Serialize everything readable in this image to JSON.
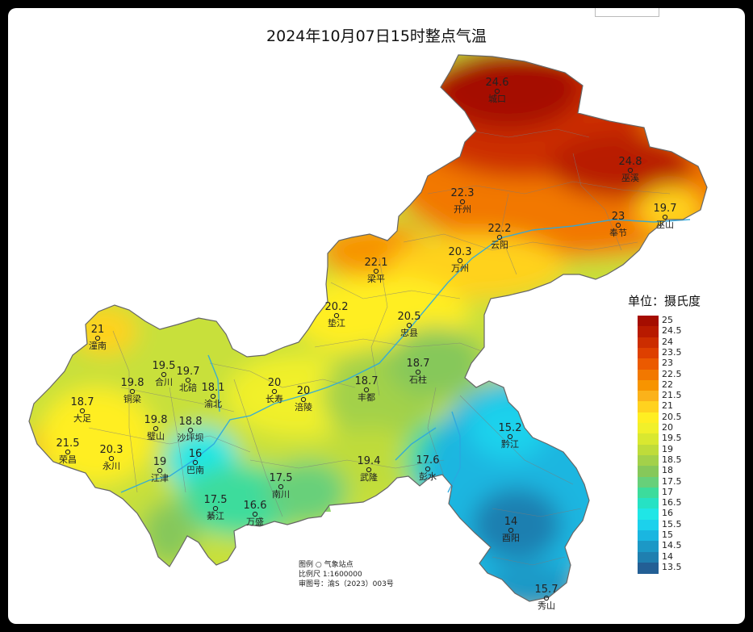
{
  "title": "2024年10月07日15时整点气温",
  "legend": {
    "title": "单位：摄氏度",
    "steps": [
      {
        "label": "25",
        "color": "#a50d00"
      },
      {
        "label": "24.5",
        "color": "#b81a00"
      },
      {
        "label": "24",
        "color": "#cc2d00"
      },
      {
        "label": "23.5",
        "color": "#de4000"
      },
      {
        "label": "23",
        "color": "#eb5a00"
      },
      {
        "label": "22.5",
        "color": "#f27800"
      },
      {
        "label": "22",
        "color": "#f79400"
      },
      {
        "label": "21.5",
        "color": "#fbb21a"
      },
      {
        "label": "21",
        "color": "#ffd21f"
      },
      {
        "label": "20.5",
        "color": "#ffee22"
      },
      {
        "label": "20",
        "color": "#f1f02a"
      },
      {
        "label": "19.5",
        "color": "#d9e830"
      },
      {
        "label": "19",
        "color": "#bfdc3a"
      },
      {
        "label": "18.5",
        "color": "#a3d14a"
      },
      {
        "label": "18",
        "color": "#86c85a"
      },
      {
        "label": "17.5",
        "color": "#67d07a"
      },
      {
        "label": "17",
        "color": "#3cdc9c"
      },
      {
        "label": "16.5",
        "color": "#26e2c4"
      },
      {
        "label": "16",
        "color": "#1fe6e6"
      },
      {
        "label": "15.5",
        "color": "#1cd1ec"
      },
      {
        "label": "15",
        "color": "#1ab6e0"
      },
      {
        "label": "14.5",
        "color": "#1c98c6"
      },
      {
        "label": "14",
        "color": "#1f7fb0"
      },
      {
        "label": "13.5",
        "color": "#235f95"
      }
    ]
  },
  "stations": [
    {
      "name": "城口",
      "value": "24.6"
    },
    {
      "name": "巫溪",
      "value": "24.8"
    },
    {
      "name": "开州",
      "value": "22.3"
    },
    {
      "name": "云阳",
      "value": "22.2"
    },
    {
      "name": "奉节",
      "value": "23"
    },
    {
      "name": "巫山",
      "value": "19.7"
    },
    {
      "name": "梁平",
      "value": "22.1"
    },
    {
      "name": "万州",
      "value": "20.3"
    },
    {
      "name": "垫江",
      "value": "20.2"
    },
    {
      "name": "忠县",
      "value": "20.5"
    },
    {
      "name": "潼南",
      "value": "21"
    },
    {
      "name": "合川",
      "value": "19.5"
    },
    {
      "name": "铜梁",
      "value": "19.8"
    },
    {
      "name": "北碚",
      "value": "19.7"
    },
    {
      "name": "渝北",
      "value": "18.1"
    },
    {
      "name": "长寿",
      "value": "20"
    },
    {
      "name": "涪陵",
      "value": "20"
    },
    {
      "name": "丰都",
      "value": "18.7"
    },
    {
      "name": "石柱",
      "value": "18.7"
    },
    {
      "name": "大足",
      "value": "18.7"
    },
    {
      "name": "璧山",
      "value": "19.8"
    },
    {
      "name": "沙坪坝",
      "value": "18.8"
    },
    {
      "name": "荣昌",
      "value": "21.5"
    },
    {
      "name": "永川",
      "value": "20.3"
    },
    {
      "name": "江津",
      "value": "19"
    },
    {
      "name": "巴南",
      "value": "16"
    },
    {
      "name": "南川",
      "value": "17.5"
    },
    {
      "name": "綦江",
      "value": "17.5"
    },
    {
      "name": "万盛",
      "value": "16.6"
    },
    {
      "name": "武隆",
      "value": "19.4"
    },
    {
      "name": "彭水",
      "value": "17.6"
    },
    {
      "name": "黔江",
      "value": "15.2"
    },
    {
      "name": "酉阳",
      "value": "14"
    },
    {
      "name": "秀山",
      "value": "15.7"
    }
  ],
  "notes": {
    "legend_line": "图例  ○  气象站点",
    "scale_line": "比例尺   1:1600000",
    "approval_line": "审图号：渝S（2023）003号"
  }
}
